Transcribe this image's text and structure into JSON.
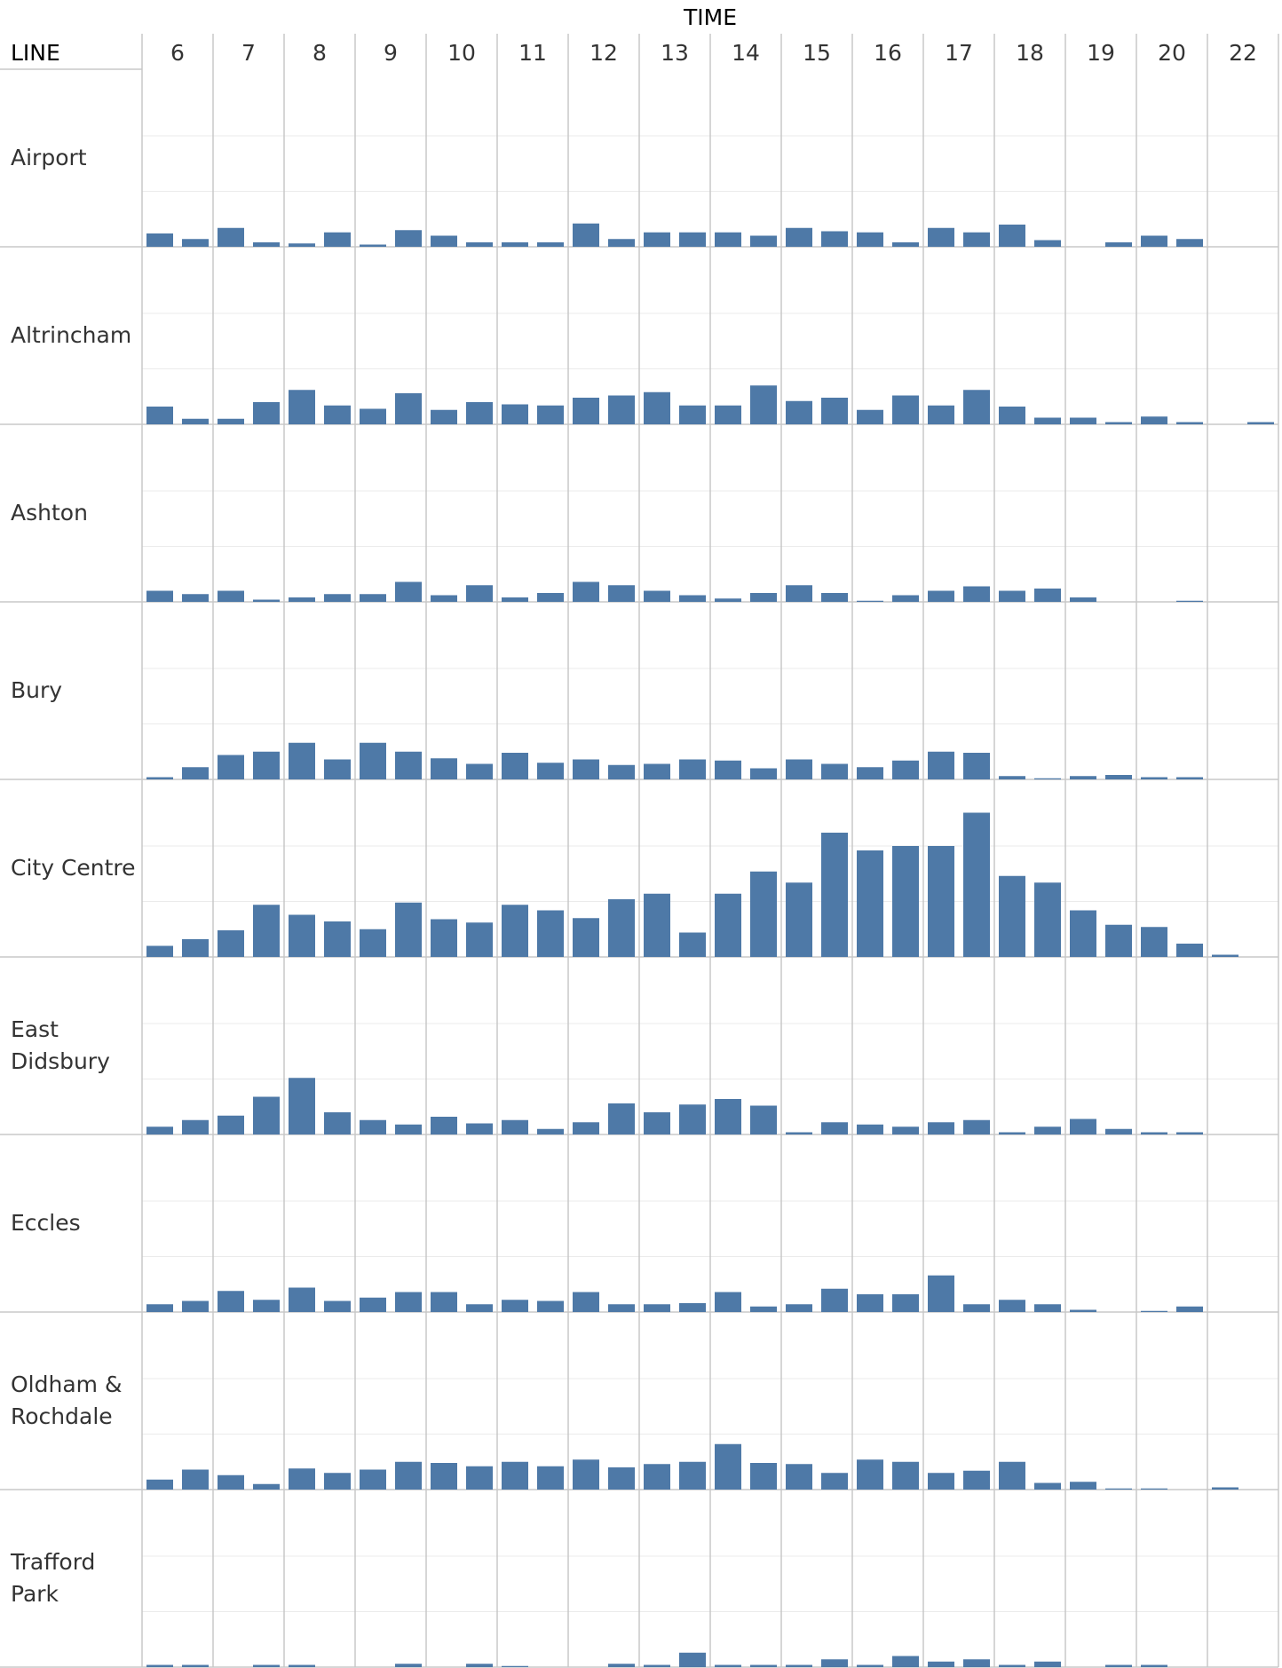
{
  "header": {
    "column_title": "TIME",
    "row_title": "LINE"
  },
  "chart_data": {
    "type": "bar",
    "title": "",
    "xlabel": "TIME",
    "ylabel": "LINE",
    "hours": [
      "6",
      "7",
      "8",
      "9",
      "10",
      "11",
      "12",
      "13",
      "14",
      "15",
      "16",
      "17",
      "18",
      "19",
      "20",
      "22"
    ],
    "bars_per_hour": 2,
    "ylim": [
      0,
      160
    ],
    "gridlines": [
      50,
      100
    ],
    "bar_color": "#4e79a7",
    "grid_color": "#ebebeb",
    "divider_color": "#c8c8c8",
    "series": [
      {
        "name": "Airport",
        "label_lines": [
          "Airport"
        ],
        "values": [
          12,
          7,
          17,
          4,
          3,
          13,
          2,
          15,
          10,
          4,
          4,
          4,
          21,
          7,
          13,
          13,
          13,
          10,
          17,
          14,
          13,
          4,
          17,
          13,
          20,
          6,
          0,
          4,
          10,
          7,
          0,
          0
        ]
      },
      {
        "name": "Altrincham",
        "label_lines": [
          "Altrincham"
        ],
        "values": [
          16,
          5,
          5,
          20,
          31,
          17,
          14,
          28,
          13,
          20,
          18,
          17,
          24,
          26,
          29,
          17,
          17,
          35,
          21,
          24,
          13,
          26,
          17,
          31,
          16,
          6,
          6,
          2,
          7,
          2,
          0,
          2
        ]
      },
      {
        "name": "Ashton",
        "label_lines": [
          "Ashton"
        ],
        "values": [
          10,
          7,
          10,
          2,
          4,
          7,
          7,
          18,
          6,
          15,
          4,
          8,
          18,
          15,
          10,
          6,
          3,
          8,
          15,
          8,
          1,
          6,
          10,
          14,
          10,
          12,
          4,
          0,
          0,
          1,
          0,
          0
        ]
      },
      {
        "name": "Bury",
        "label_lines": [
          "Bury"
        ],
        "values": [
          2,
          11,
          22,
          25,
          33,
          18,
          33,
          25,
          19,
          14,
          24,
          15,
          18,
          13,
          14,
          18,
          17,
          10,
          18,
          14,
          11,
          17,
          25,
          24,
          3,
          1,
          3,
          4,
          2,
          2,
          0,
          0
        ]
      },
      {
        "name": "City Centre",
        "label_lines": [
          "City Centre"
        ],
        "values": [
          10,
          16,
          24,
          47,
          38,
          32,
          25,
          49,
          34,
          31,
          47,
          42,
          35,
          52,
          57,
          22,
          57,
          77,
          67,
          112,
          96,
          100,
          100,
          130,
          73,
          67,
          42,
          29,
          27,
          12,
          2,
          0
        ]
      },
      {
        "name": "East Didsbury",
        "label_lines": [
          "East",
          "Didsbury"
        ],
        "values": [
          7,
          13,
          17,
          34,
          51,
          20,
          13,
          9,
          16,
          10,
          13,
          5,
          11,
          28,
          20,
          27,
          32,
          26,
          2,
          11,
          9,
          7,
          11,
          13,
          2,
          7,
          14,
          5,
          2,
          2,
          0,
          0
        ]
      },
      {
        "name": "Eccles",
        "label_lines": [
          "Eccles"
        ],
        "values": [
          7,
          10,
          19,
          11,
          22,
          10,
          13,
          18,
          18,
          7,
          11,
          10,
          18,
          7,
          7,
          8,
          18,
          5,
          7,
          21,
          16,
          16,
          33,
          7,
          11,
          7,
          2,
          0,
          1,
          5,
          0,
          0
        ]
      },
      {
        "name": "Oldham & Rochdale",
        "label_lines": [
          "Oldham &",
          "Rochdale"
        ],
        "values": [
          9,
          18,
          13,
          5,
          19,
          15,
          18,
          25,
          24,
          21,
          25,
          21,
          27,
          20,
          23,
          25,
          41,
          24,
          23,
          15,
          27,
          25,
          15,
          17,
          25,
          6,
          7,
          1,
          1,
          0,
          2,
          0
        ]
      },
      {
        "name": "Trafford Park",
        "label_lines": [
          "Trafford",
          "Park"
        ],
        "values": [
          2,
          2,
          0,
          2,
          2,
          0,
          0,
          3,
          0,
          3,
          1,
          0,
          0,
          3,
          2,
          13,
          2,
          2,
          2,
          7,
          2,
          10,
          5,
          7,
          2,
          5,
          0,
          2,
          2,
          0,
          0,
          0
        ]
      }
    ]
  }
}
